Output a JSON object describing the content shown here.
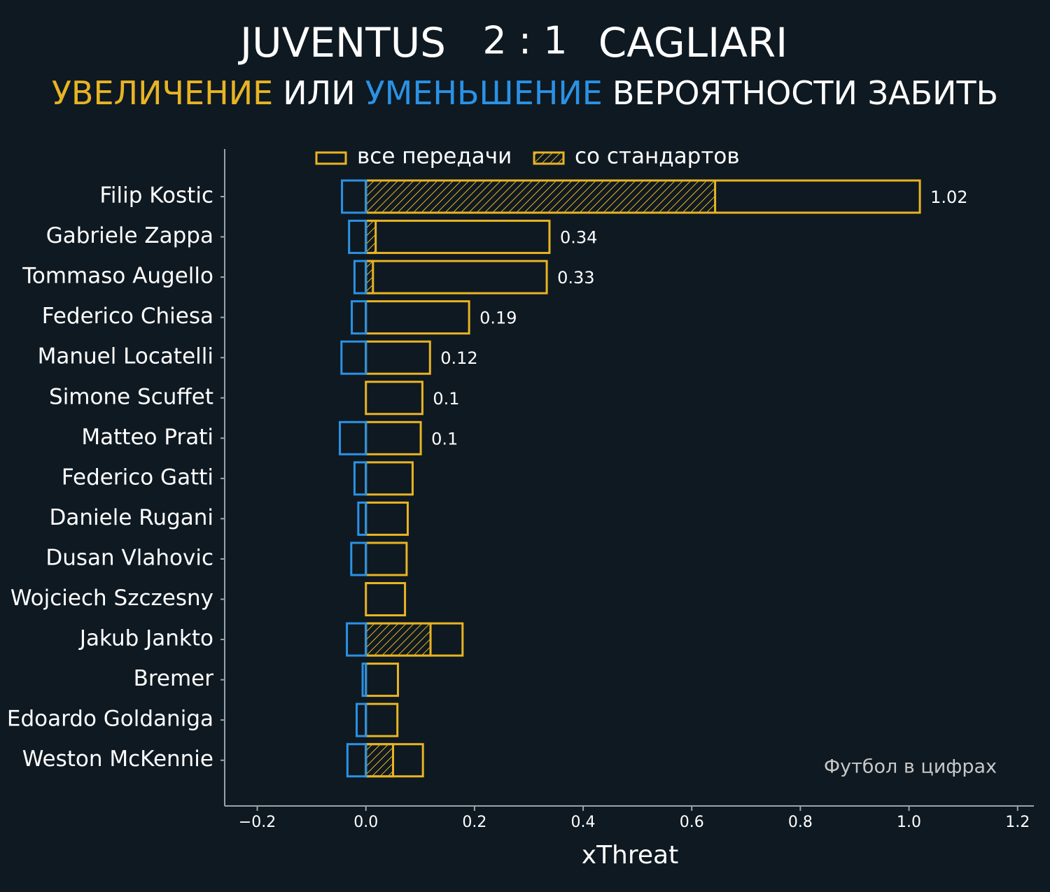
{
  "chart_data": {
    "type": "bar",
    "orientation": "horizontal",
    "title": {
      "home": "JUVENTUS",
      "score": "2 : 1",
      "away": "CAGLIARI"
    },
    "subtitle": [
      {
        "text": "УВЕЛИЧЕНИЕ",
        "color": "#e8b424"
      },
      {
        "text": "ИЛИ",
        "color": "#ffffff"
      },
      {
        "text": "УМЕНЬШЕНИЕ",
        "color": "#2a92e6"
      },
      {
        "text": "ВЕРОЯТНОСТИ ЗАБИТЬ",
        "color": "#ffffff"
      }
    ],
    "xlabel": "xThreat",
    "annotation": "Футбол в цифрах",
    "categories": [
      "Filip Kostic",
      "Gabriele Zappa",
      "Tommaso Augello",
      "Federico Chiesa",
      "Manuel Locatelli",
      "Simone Scuffet",
      "Matteo Prati",
      "Federico Gatti",
      "Daniele Rugani",
      "Dusan Vlahovic",
      "Wojciech Szczesny",
      "Jakub Jankto",
      "Bremer",
      "Edoardo Goldaniga",
      "Weston McKennie"
    ],
    "series": [
      {
        "name": "все передачи",
        "color": "#e8b424",
        "values": [
          1.02,
          0.338,
          0.333,
          0.19,
          0.118,
          0.104,
          0.101,
          0.086,
          0.077,
          0.075,
          0.072,
          0.178,
          0.059,
          0.058,
          0.105
        ],
        "value_labels": [
          "1.02",
          "0.34",
          "0.33",
          "0.19",
          "0.12",
          "0.1",
          "0.1",
          null,
          null,
          null,
          null,
          null,
          null,
          null,
          null
        ]
      },
      {
        "name": "со стандартов",
        "color": "#e8b424",
        "hatch": true,
        "values": [
          0.643,
          0.018,
          0.013,
          null,
          null,
          null,
          null,
          null,
          null,
          null,
          null,
          0.119,
          null,
          null,
          0.05
        ]
      },
      {
        "color": "#2a92e6",
        "values": [
          -0.044,
          -0.031,
          -0.021,
          -0.026,
          -0.045,
          null,
          -0.048,
          -0.021,
          -0.014,
          -0.027,
          null,
          -0.035,
          -0.006,
          -0.017,
          -0.034
        ]
      }
    ],
    "xlim": [
      -0.26,
      1.23
    ],
    "xticks": [
      {
        "value": -0.2,
        "label": "−0.2"
      },
      {
        "value": 0,
        "label": "0.0"
      },
      0.2,
      0.4,
      0.6,
      0.8,
      {
        "value": 1,
        "label": "1.0"
      },
      1.2
    ]
  }
}
